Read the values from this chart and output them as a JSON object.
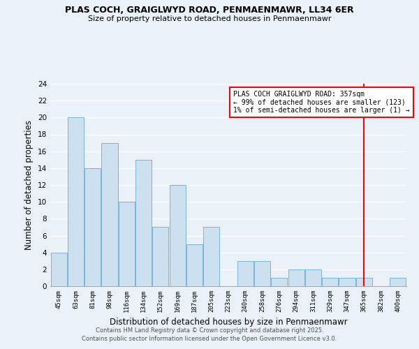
{
  "title1": "PLAS COCH, GRAIGLWYD ROAD, PENMAENMAWR, LL34 6ER",
  "title2": "Size of property relative to detached houses in Penmaenmawr",
  "xlabel": "Distribution of detached houses by size in Penmaenmawr",
  "ylabel": "Number of detached properties",
  "bins": [
    "45sqm",
    "63sqm",
    "81sqm",
    "98sqm",
    "116sqm",
    "134sqm",
    "152sqm",
    "169sqm",
    "187sqm",
    "205sqm",
    "223sqm",
    "240sqm",
    "258sqm",
    "276sqm",
    "294sqm",
    "311sqm",
    "329sqm",
    "347sqm",
    "365sqm",
    "382sqm",
    "400sqm"
  ],
  "values": [
    4,
    20,
    14,
    17,
    10,
    15,
    7,
    12,
    5,
    7,
    0,
    3,
    3,
    1,
    2,
    2,
    1,
    1,
    1,
    0,
    1
  ],
  "bar_color": "#cce0f0",
  "bar_edge_color": "#7ab4d8",
  "background_color": "#eaf1f8",
  "grid_color": "#ffffff",
  "red_line_x": 18.0,
  "annotation_title": "PLAS COCH GRAIGLWYD ROAD: 357sqm",
  "annotation_line1": "← 99% of detached houses are smaller (123)",
  "annotation_line2": "1% of semi-detached houses are larger (1) →",
  "ylim": [
    0,
    24
  ],
  "yticks": [
    0,
    2,
    4,
    6,
    8,
    10,
    12,
    14,
    16,
    18,
    20,
    22,
    24
  ],
  "footer1": "Contains HM Land Registry data © Crown copyright and database right 2025.",
  "footer2": "Contains public sector information licensed under the Open Government Licence v3.0."
}
